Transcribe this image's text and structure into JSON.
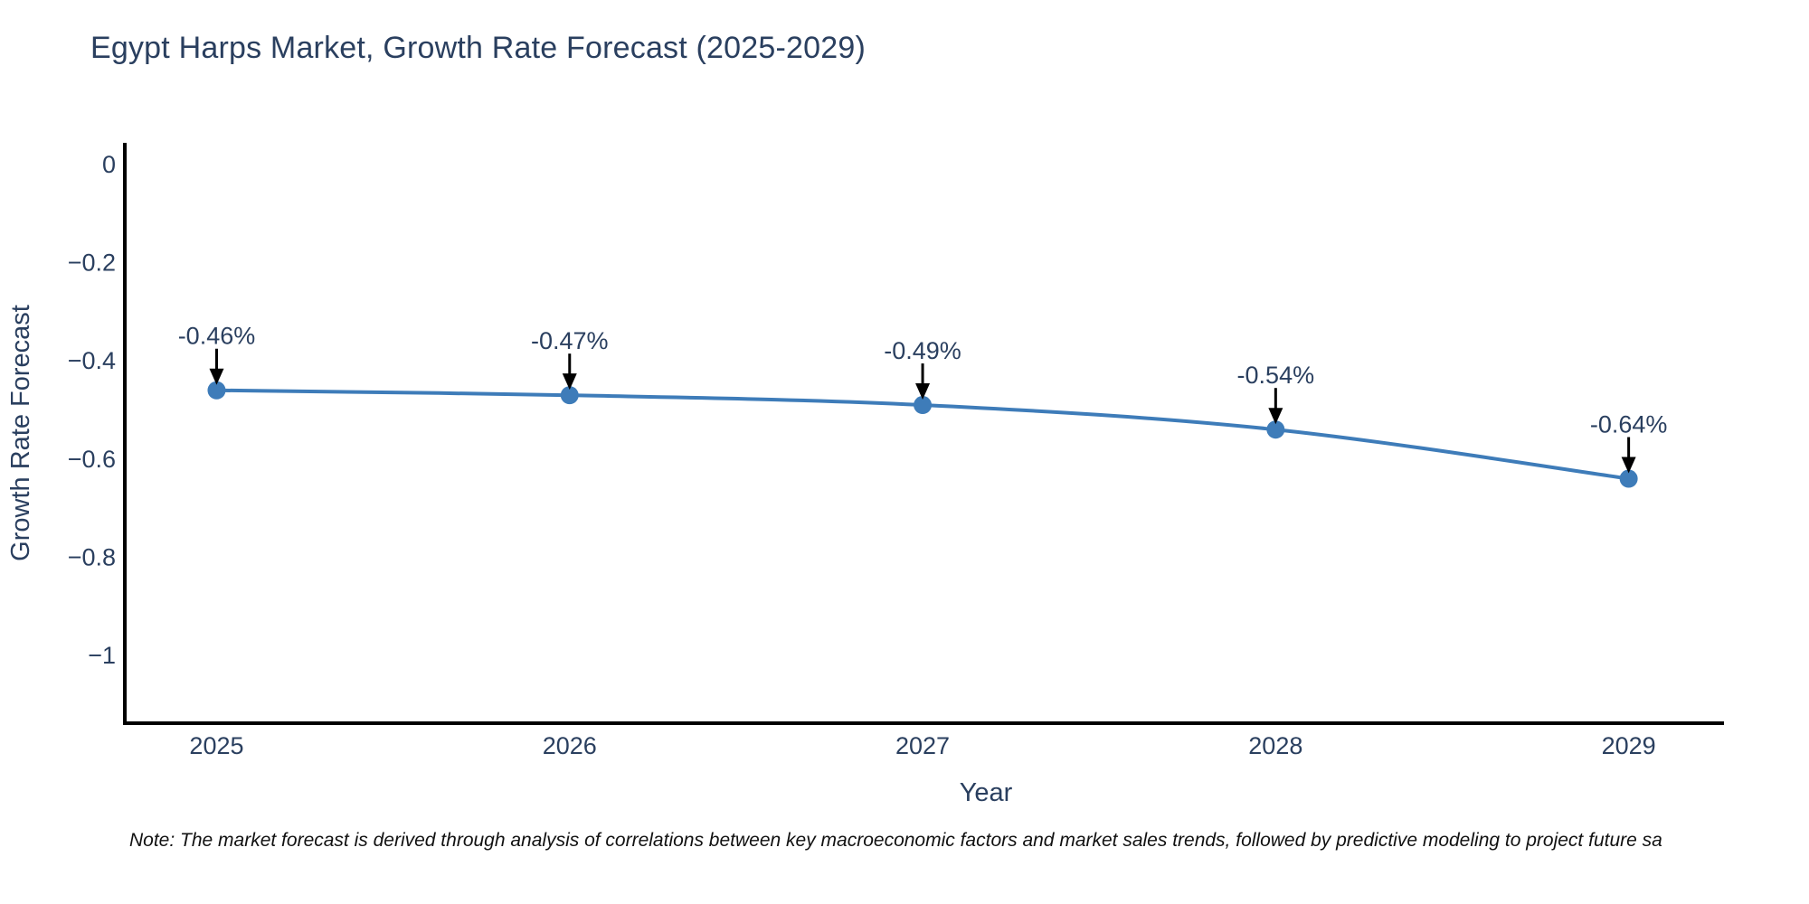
{
  "title": "Egypt Harps Market, Growth Rate Forecast (2025-2029)",
  "note": "Note: The market forecast is derived through analysis of correlations between key macroeconomic factors and market sales trends, followed by predictive modeling to project future sa",
  "colors": {
    "line": "#3E7CB9",
    "marker": "#3E7CB9",
    "axis": "#000000",
    "tick_text": "#2a3f5f",
    "annotation_text": "#2a3f5f",
    "arrow": "#000000",
    "background": "#ffffff"
  },
  "chart_data": {
    "type": "line",
    "x": [
      2025,
      2026,
      2027,
      2028,
      2029
    ],
    "values": [
      -0.46,
      -0.47,
      -0.49,
      -0.54,
      -0.64
    ],
    "point_labels": [
      "-0.46%",
      "-0.47%",
      "-0.49%",
      "-0.54%",
      "-0.64%"
    ],
    "title": "Egypt Harps Market, Growth Rate Forecast (2025-2029)",
    "xlabel": "Year",
    "ylabel": "Growth Rate Forecast",
    "xtick_labels": [
      "2025",
      "2026",
      "2027",
      "2028",
      "2029"
    ],
    "ytick_values": [
      0,
      -0.2,
      -0.4,
      -0.6,
      -0.8,
      -1
    ],
    "ytick_labels": [
      "0",
      "−0.2",
      "−0.4",
      "−0.6",
      "−0.8",
      "−1"
    ],
    "xlim": [
      2024.74,
      2029.27
    ],
    "ylim": [
      0.044,
      -1.138
    ],
    "grid": false,
    "legend": false,
    "line_shape": "spline",
    "annotations_have_arrows": true
  }
}
